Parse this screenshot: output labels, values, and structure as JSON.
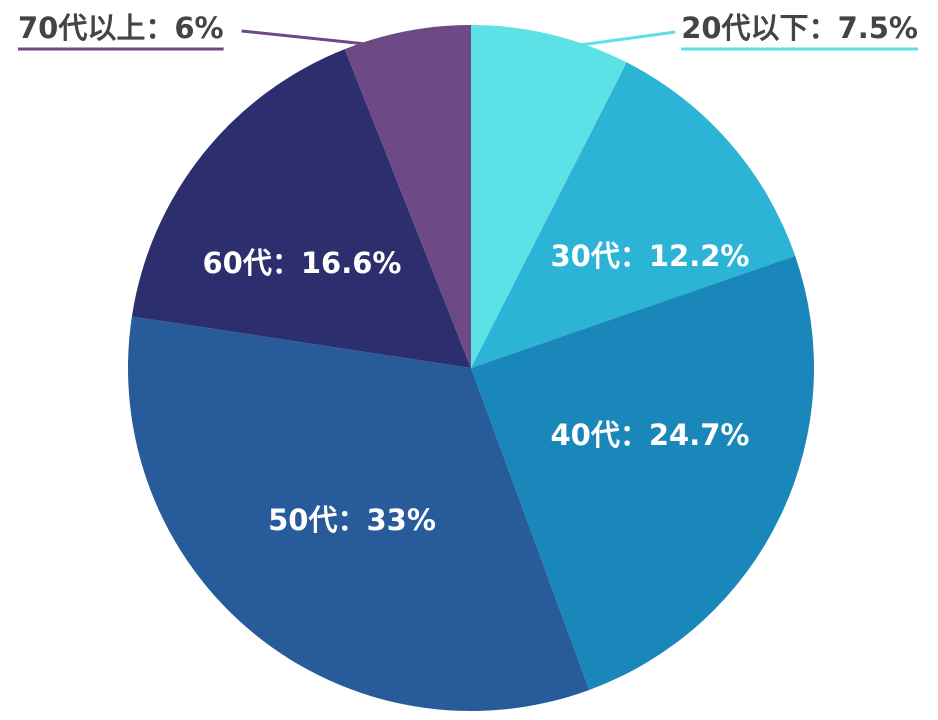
{
  "chart_data": {
    "type": "pie",
    "categories": [
      "20代以下",
      "30代",
      "40代",
      "50代",
      "60代",
      "70代以上"
    ],
    "values": [
      7.5,
      12.2,
      24.7,
      33,
      16.6,
      6
    ],
    "value_labels": [
      "7.5%",
      "12.2%",
      "24.7%",
      "33%",
      "16.6%",
      "6%"
    ],
    "separator": "：",
    "colors": [
      "#5ce1e6",
      "#2bb4d6",
      "#1a87bb",
      "#275b9a",
      "#2d2e6e",
      "#6d4a85"
    ]
  }
}
